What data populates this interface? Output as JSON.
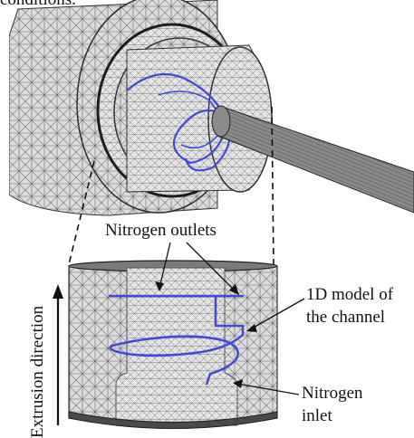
{
  "top_text": "conditions.",
  "labels": {
    "nitrogen_outlets": "Nitrogen outlets",
    "model_line1": "1D model of",
    "model_line2": "the channel",
    "inlet_line1": "Nitrogen",
    "inlet_line2": "inlet",
    "extrusion_direction": "Extrusion direction"
  },
  "colors": {
    "mesh": "#9a9a9a",
    "mesh_dark": "#3a3a3a",
    "channel": "#3f4bd8",
    "text": "#111111"
  }
}
